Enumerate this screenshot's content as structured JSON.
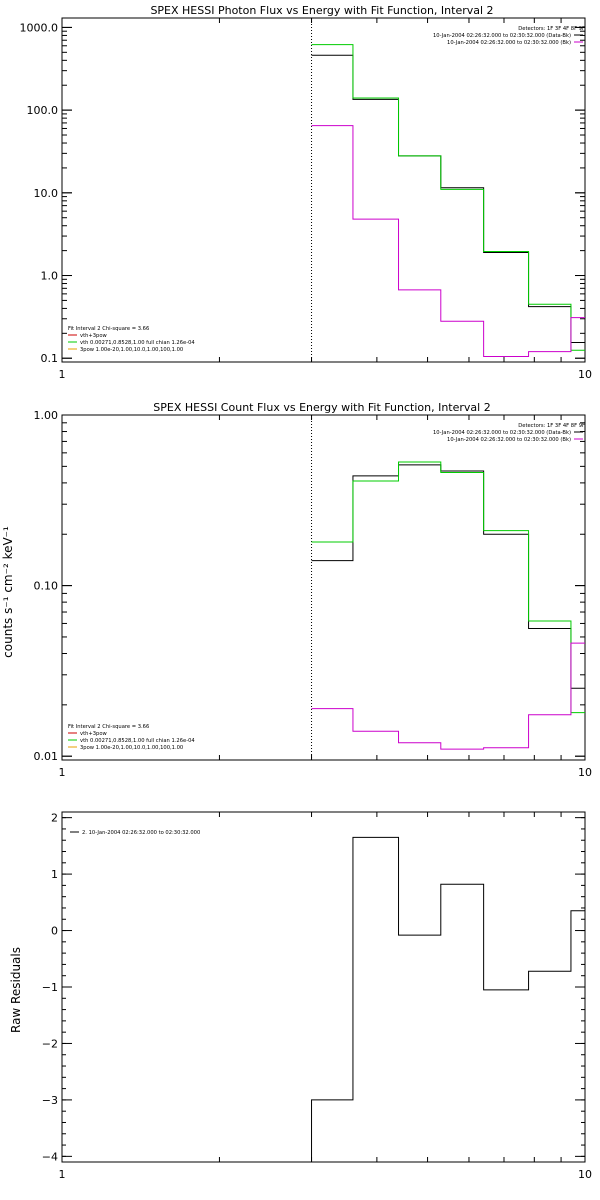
{
  "colors": {
    "black": "#000000",
    "green": "#00cc00",
    "magenta": "#cc00cc",
    "orange": "#e8a000",
    "red": "#cc0000"
  },
  "chart_data": [
    {
      "id": "photon",
      "type": "line",
      "title": "SPEX HESSI Photon Flux vs Energy with Fit Function, Interval 2",
      "ylabel": "",
      "xscale": "log",
      "yscale": "log",
      "xlim": [
        1,
        10
      ],
      "ylim": [
        0.09,
        1300
      ],
      "xticks": [
        {
          "v": 1,
          "label": "1"
        },
        {
          "v": 10,
          "label": "10"
        }
      ],
      "yticks": [
        {
          "v": 0.1,
          "label": "0.1"
        },
        {
          "v": 1,
          "label": "1.0"
        },
        {
          "v": 10,
          "label": "10.0"
        },
        {
          "v": 100,
          "label": "100.0"
        },
        {
          "v": 1000,
          "label": "1000.0"
        }
      ],
      "vline": 3.0,
      "legend_tr": {
        "header": "Detectors: 1F 3F 4F 8F 9F",
        "lines": [
          {
            "text": "10-Jan-2004 02:26:32.000 to 02:30:32.000 (Data-Bk)",
            "color": "black"
          },
          {
            "text": "10-Jan-2004 02:26:32.000 to 02:30:32.000 (Bk)",
            "color": "magenta"
          }
        ]
      },
      "legend_bl": {
        "header": "Fit Interval 2   Chi-square = 3.66",
        "lines": [
          {
            "text": "vth+3pow",
            "color": "red"
          },
          {
            "text": "vth 0.00271,0.8528,1.00  full chian 1.26e-04",
            "color": "green"
          },
          {
            "text": "3pow 1.00e-20,1.00,10.0,1.00,100,1.00",
            "color": "orange"
          }
        ]
      },
      "edges": [
        3.0,
        3.6,
        4.4,
        5.3,
        6.4,
        7.8,
        9.4,
        10
      ],
      "series": [
        {
          "color": "black",
          "values": [
            460,
            135,
            28,
            11.5,
            1.9,
            0.42,
            0.155
          ]
        },
        {
          "color": "green",
          "values": [
            620,
            140,
            28,
            11.0,
            1.95,
            0.45,
            0.125
          ]
        },
        {
          "color": "magenta",
          "values": [
            65,
            4.8,
            0.67,
            0.28,
            0.105,
            0.12,
            0.31
          ]
        }
      ]
    },
    {
      "id": "count",
      "type": "line",
      "title": "SPEX HESSI Count Flux vs Energy with Fit Function, Interval 2",
      "ylabel": "counts s⁻¹ cm⁻² keV⁻¹",
      "xscale": "log",
      "yscale": "log",
      "xlim": [
        1,
        10
      ],
      "ylim": [
        0.0095,
        1.0
      ],
      "xticks": [
        {
          "v": 1,
          "label": "1"
        },
        {
          "v": 10,
          "label": "10"
        }
      ],
      "yticks": [
        {
          "v": 0.01,
          "label": "0.01"
        },
        {
          "v": 0.1,
          "label": "0.10"
        },
        {
          "v": 1,
          "label": "1.00"
        }
      ],
      "vline": 3.0,
      "legend_tr": {
        "header": "Detectors: 1F 3F 4F 8F 9F",
        "lines": [
          {
            "text": "10-Jan-2004 02:26:32.000 to 02:30:32.000 (Data-Bk)",
            "color": "black"
          },
          {
            "text": "10-Jan-2004 02:26:32.000 to 02:30:32.000 (Bk)",
            "color": "magenta"
          }
        ]
      },
      "legend_bl": {
        "header": "Fit Interval 2   Chi-square = 3.66",
        "lines": [
          {
            "text": "vth+3pow",
            "color": "red"
          },
          {
            "text": "vth 0.00271,0.8528,1.00  full chian 1.26e-04",
            "color": "green"
          },
          {
            "text": "3pow 1.00e-20,1.00,10.0,1.00,100,1.00",
            "color": "orange"
          }
        ]
      },
      "edges": [
        3.0,
        3.6,
        4.4,
        5.3,
        6.4,
        7.8,
        9.4,
        10
      ],
      "series": [
        {
          "color": "black",
          "values": [
            0.14,
            0.44,
            0.51,
            0.47,
            0.2,
            0.056,
            0.025
          ]
        },
        {
          "color": "green",
          "values": [
            0.18,
            0.41,
            0.53,
            0.46,
            0.21,
            0.062,
            0.018
          ]
        },
        {
          "color": "magenta",
          "values": [
            0.019,
            0.014,
            0.012,
            0.011,
            0.0112,
            0.0175,
            0.046
          ]
        }
      ]
    },
    {
      "id": "resid",
      "type": "line",
      "title": "",
      "ylabel": "Raw Residuals",
      "xscale": "log",
      "yscale": "linear",
      "xlim": [
        1,
        10
      ],
      "ylim": [
        -4.1,
        2.1
      ],
      "xticks": [
        {
          "v": 1,
          "label": "1"
        },
        {
          "v": 10,
          "label": "10"
        }
      ],
      "yticks": [
        {
          "v": -4,
          "label": "−4"
        },
        {
          "v": -3,
          "label": "−3"
        },
        {
          "v": -2,
          "label": "−2"
        },
        {
          "v": -1,
          "label": "−1"
        },
        {
          "v": 0,
          "label": "0"
        },
        {
          "v": 1,
          "label": "1"
        },
        {
          "v": 2,
          "label": "2"
        }
      ],
      "legend_tl": {
        "header": "",
        "lines": [
          {
            "text": "2. 10-Jan-2004 02:26:32.000 to 02:30:32.000",
            "color": "black"
          }
        ]
      },
      "edges": [
        3.0,
        3.6,
        4.4,
        5.3,
        6.4,
        7.8,
        9.4,
        10
      ],
      "series": [
        {
          "color": "black",
          "values": [
            -3.0,
            1.65,
            -0.08,
            0.82,
            -1.05,
            -0.72,
            0.35
          ],
          "start": -4.1
        }
      ]
    }
  ]
}
